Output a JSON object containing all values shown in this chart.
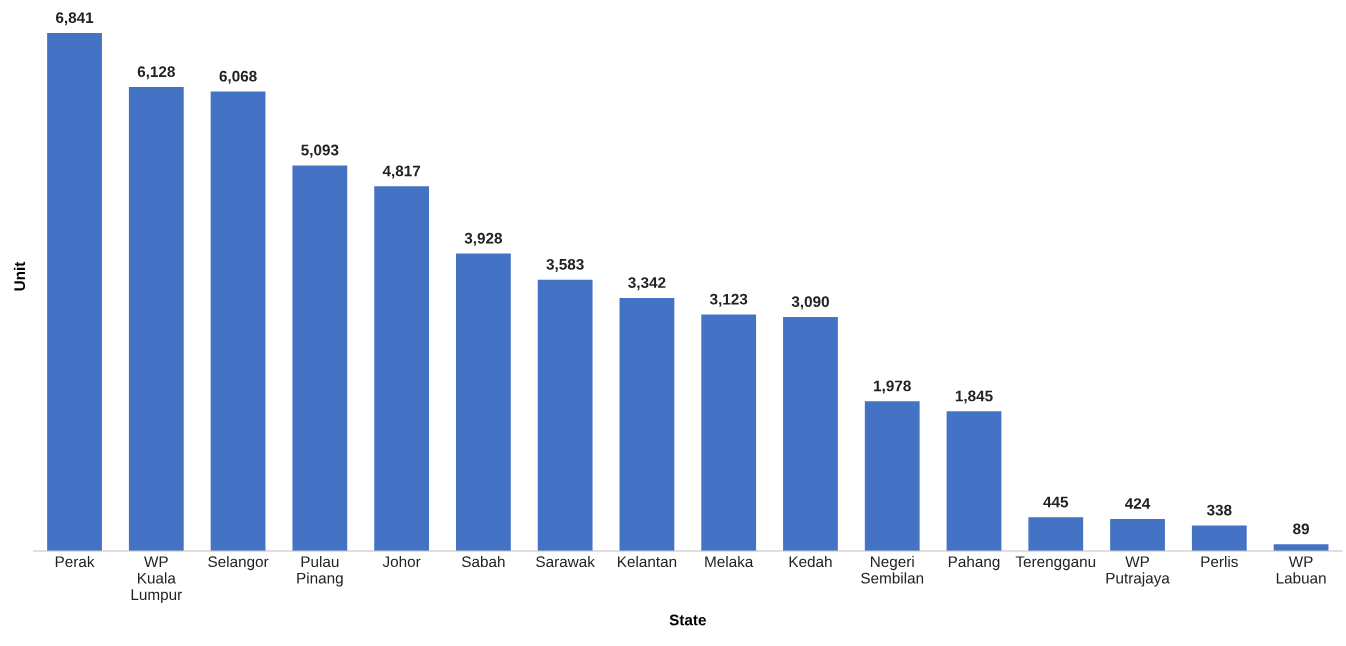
{
  "chart_data": {
    "type": "bar",
    "xlabel": "State",
    "ylabel": "Unit",
    "categories": [
      "Perak",
      "WP\nKuala\nLumpur",
      "Selangor",
      "Pulau\nPinang",
      "Johor",
      "Sabah",
      "Sarawak",
      "Kelantan",
      "Melaka",
      "Kedah",
      "Negeri\nSembilan",
      "Pahang",
      "Terengganu",
      "WP\nPutrajaya",
      "Perlis",
      "WP\nLabuan"
    ],
    "values": [
      6841,
      6128,
      6068,
      5093,
      4817,
      3928,
      3583,
      3342,
      3123,
      3090,
      1978,
      1845,
      445,
      424,
      338,
      89
    ],
    "value_labels": [
      "6,841",
      "6,128",
      "6,068",
      "5,093",
      "4,817",
      "3,928",
      "3,583",
      "3,342",
      "3,123",
      "3,090",
      "1,978",
      "1,845",
      "445",
      "424",
      "338",
      "89"
    ],
    "color": "#4472c4",
    "tick_labels": "x",
    "grid": false,
    "legend": false
  }
}
